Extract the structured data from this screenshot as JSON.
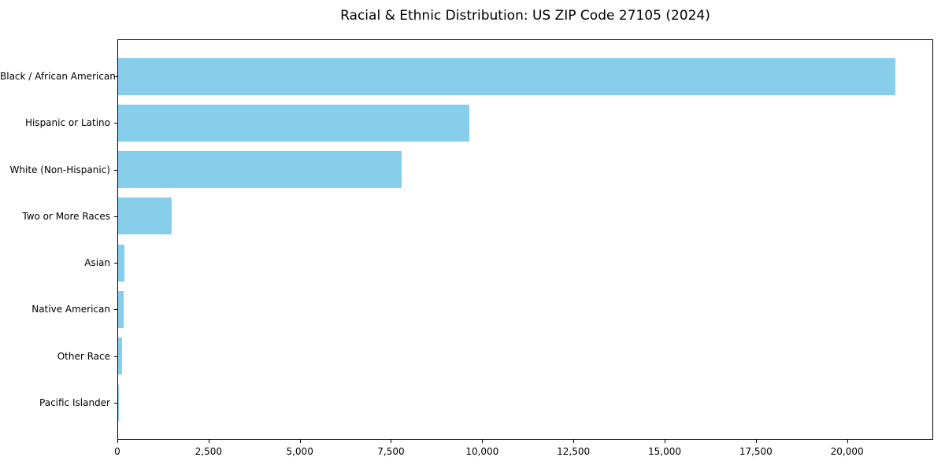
{
  "chart_data": {
    "type": "bar",
    "orientation": "horizontal",
    "title": "Racial & Ethnic Distribution: US ZIP Code 27105 (2024)",
    "categories": [
      "Black / African American",
      "Hispanic or Latino",
      "White (Non-Hispanic)",
      "Two or More Races",
      "Asian",
      "Native American",
      "Other Race",
      "Pacific Islander"
    ],
    "values": [
      21300,
      9620,
      7770,
      1470,
      175,
      150,
      110,
      15
    ],
    "xlabel": "",
    "ylabel": "",
    "xlim": [
      0,
      22360
    ],
    "x_ticks": [
      0,
      2500,
      5000,
      7500,
      10000,
      12500,
      15000,
      17500,
      20000
    ],
    "x_tick_labels": [
      "0",
      "2,500",
      "5,000",
      "7,500",
      "10,000",
      "12,500",
      "15,000",
      "17,500",
      "20,000"
    ],
    "grid": false,
    "legend": "none",
    "bar_color": "#87CEEB",
    "background_color": "#ffffff",
    "spine_color": "#000000",
    "text_color": "#000000"
  }
}
